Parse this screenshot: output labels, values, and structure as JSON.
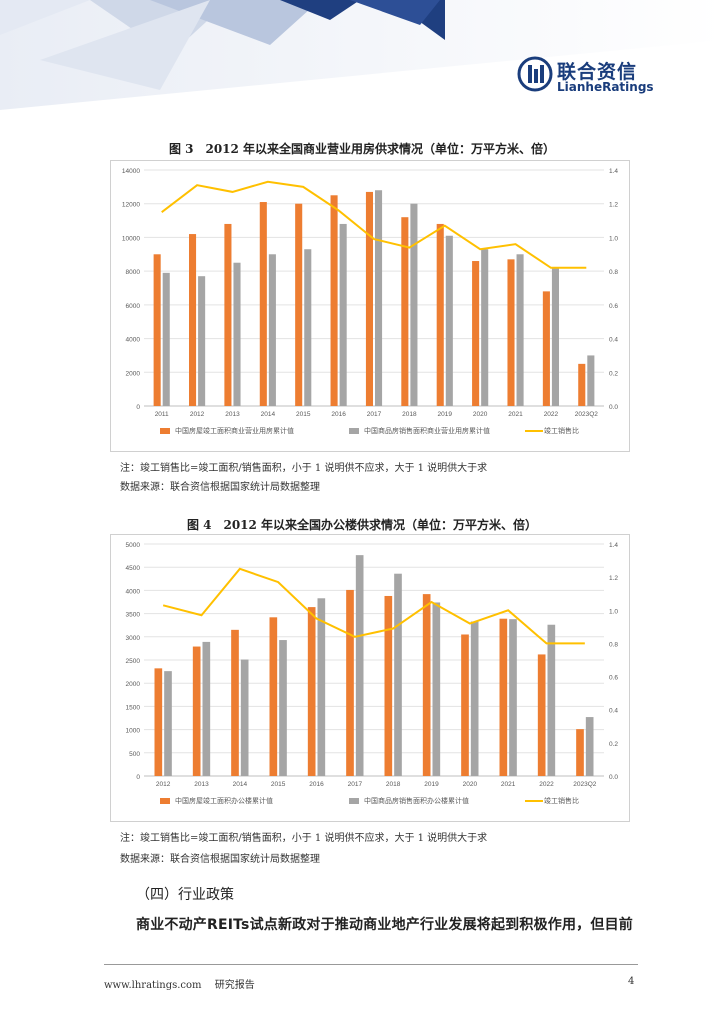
{
  "header": {
    "logo_name": "联合资信",
    "logo_en": "LianheRatings"
  },
  "figures": [
    {
      "title": "图 3　2012 年以来全国商业营业用房供求情况（单位：万平方米、倍）",
      "note": "注：竣工销售比=竣工面积/销售面积，小于 1 说明供不应求，大于 1 说明供大于求",
      "source": "数据来源：联合资信根据国家统计局数据整理"
    },
    {
      "title": "图 4　2012 年以来全国办公楼供求情况（单位：万平方米、倍）",
      "note": "注：竣工销售比=竣工面积/销售面积，小于 1 说明供不应求，大于 1 说明供大于求",
      "source": "数据来源：联合资信根据国家统计局数据整理"
    }
  ],
  "chart_data": [
    {
      "type": "bar",
      "categories": [
        "2011",
        "2012",
        "2013",
        "2014",
        "2015",
        "2016",
        "2017",
        "2018",
        "2019",
        "2020",
        "2021",
        "2022",
        "2023Q2"
      ],
      "series": [
        {
          "name": "中国房屋竣工面积商业营业用房累计值",
          "type": "bar",
          "axis": "left",
          "color": "#ED7D31",
          "values": [
            9000,
            10200,
            10800,
            12100,
            12000,
            12500,
            12700,
            11200,
            10800,
            8600,
            8700,
            6800,
            2500
          ]
        },
        {
          "name": "中国商品房销售面积商业营业用房累计值",
          "type": "bar",
          "axis": "left",
          "color": "#A5A5A5",
          "values": [
            7900,
            7700,
            8500,
            9000,
            9300,
            10800,
            12800,
            12000,
            10100,
            9300,
            9000,
            8200,
            3000
          ]
        },
        {
          "name": "竣工销售比",
          "type": "line",
          "axis": "right",
          "color": "#FFC000",
          "values": [
            1.15,
            1.31,
            1.27,
            1.33,
            1.3,
            1.16,
            0.99,
            0.94,
            1.07,
            0.93,
            0.96,
            0.82,
            0.82
          ]
        }
      ],
      "ylim": [
        0,
        14000
      ],
      "y_ticks": [
        "0",
        "2000",
        "4000",
        "6000",
        "8000",
        "10000",
        "12000",
        "14000"
      ],
      "y2lim": [
        0,
        1.4
      ],
      "y2_ticks": [
        "0.0",
        "0.2",
        "0.4",
        "0.6",
        "0.8",
        "1.0",
        "1.2",
        "1.4"
      ],
      "grid": true,
      "legend": "bottom"
    },
    {
      "type": "bar",
      "categories": [
        "2012",
        "2013",
        "2014",
        "2015",
        "2016",
        "2017",
        "2018",
        "2019",
        "2020",
        "2021",
        "2022",
        "2023Q2"
      ],
      "series": [
        {
          "name": "中国房屋竣工面积办公楼累计值",
          "type": "bar",
          "axis": "left",
          "color": "#ED7D31",
          "values": [
            2320,
            2790,
            3150,
            3420,
            3640,
            4010,
            3880,
            3920,
            3050,
            3390,
            2620,
            1010
          ]
        },
        {
          "name": "中国商品房销售面积办公楼累计值",
          "type": "bar",
          "axis": "left",
          "color": "#A5A5A5",
          "values": [
            2260,
            2890,
            2510,
            2930,
            3830,
            4760,
            4360,
            3740,
            3330,
            3380,
            3260,
            1270
          ]
        },
        {
          "name": "竣工销售比",
          "type": "line",
          "axis": "right",
          "color": "#FFC000",
          "values": [
            1.03,
            0.97,
            1.25,
            1.17,
            0.95,
            0.84,
            0.89,
            1.05,
            0.92,
            1.0,
            0.8,
            0.8
          ]
        }
      ],
      "ylim": [
        0,
        5000
      ],
      "y_ticks": [
        "0",
        "500",
        "1000",
        "1500",
        "2000",
        "2500",
        "3000",
        "3500",
        "4000",
        "4500",
        "5000"
      ],
      "y2lim": [
        0,
        1.4
      ],
      "y2_ticks": [
        "0.0",
        "0.2",
        "0.4",
        "0.6",
        "0.8",
        "1.0",
        "1.2",
        "1.4"
      ],
      "grid": true,
      "legend": "bottom"
    }
  ],
  "body": {
    "section_title": "（四）行业政策",
    "paragraph": "商业不动产REITs试点新政对于推动商业地产行业发展将起到积极作用，但目前"
  },
  "footer": {
    "site": "www.lhratings.com　 研究报告",
    "page": "4"
  },
  "colors": {
    "brand": "#1a3d7c",
    "bar1": "#ED7D31",
    "bar2": "#A5A5A5",
    "line": "#FFC000"
  }
}
